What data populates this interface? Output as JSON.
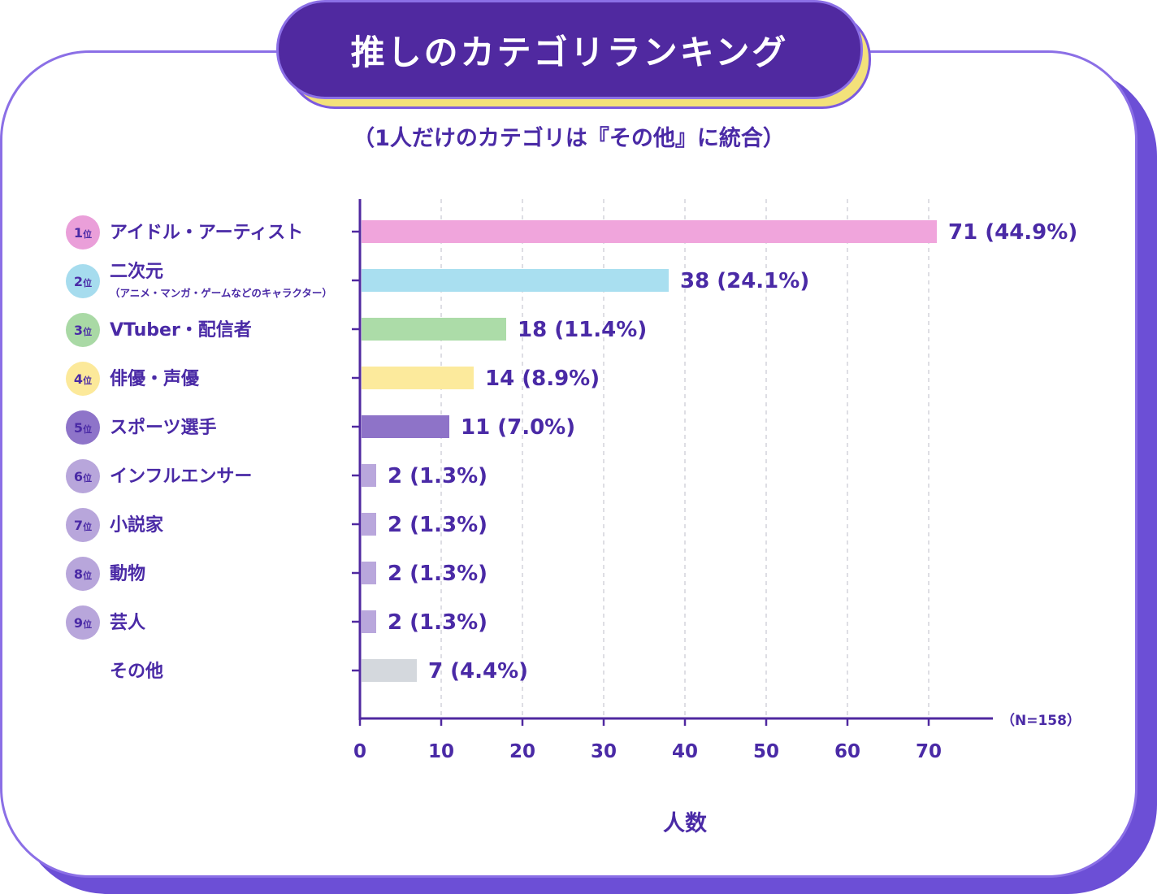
{
  "title": "推しのカテゴリランキング",
  "subtitle": "（1人だけのカテゴリは『その他』に統合）",
  "colors": {
    "primary": "#5029a0",
    "accent_yellow": "#f3e17a",
    "card_border": "#8b6fe6",
    "text": "#4a2aa6"
  },
  "chart_data": {
    "type": "bar",
    "orientation": "horizontal",
    "categories": [
      {
        "rank": "1",
        "rank_suffix": "位",
        "label": "アイドル・アーティスト",
        "sublabel": "",
        "value": 71,
        "percent_label": "(44.9%)",
        "color": "#f0a5dc",
        "badge_color": "#ea9fd9"
      },
      {
        "rank": "2",
        "rank_suffix": "位",
        "label": "二次元",
        "sublabel": "（アニメ・マンガ・ゲームなどのキャラクター）",
        "value": 38,
        "percent_label": "(24.1%)",
        "color": "#a9dff0",
        "badge_color": "#a6dcee"
      },
      {
        "rank": "3",
        "rank_suffix": "位",
        "label": "VTuber・配信者",
        "sublabel": "",
        "value": 18,
        "percent_label": "(11.4%)",
        "color": "#acdca8",
        "badge_color": "#a9d9a5"
      },
      {
        "rank": "4",
        "rank_suffix": "位",
        "label": "俳優・声優",
        "sublabel": "",
        "value": 14,
        "percent_label": "(8.9%)",
        "color": "#fcea9c",
        "badge_color": "#fce99a"
      },
      {
        "rank": "5",
        "rank_suffix": "位",
        "label": "スポーツ選手",
        "sublabel": "",
        "value": 11,
        "percent_label": "(7.0%)",
        "color": "#8e73c8",
        "badge_color": "#8e74c9"
      },
      {
        "rank": "6",
        "rank_suffix": "位",
        "label": "インフルエンサー",
        "sublabel": "",
        "value": 2,
        "percent_label": "(1.3%)",
        "color": "#b9a7dc",
        "badge_color": "#b8a6db"
      },
      {
        "rank": "7",
        "rank_suffix": "位",
        "label": "小説家",
        "sublabel": "",
        "value": 2,
        "percent_label": "(1.3%)",
        "color": "#b9a7dc",
        "badge_color": "#b8a6db"
      },
      {
        "rank": "8",
        "rank_suffix": "位",
        "label": "動物",
        "sublabel": "",
        "value": 2,
        "percent_label": "(1.3%)",
        "color": "#b9a7dc",
        "badge_color": "#b8a6db"
      },
      {
        "rank": "9",
        "rank_suffix": "位",
        "label": "芸人",
        "sublabel": "",
        "value": 2,
        "percent_label": "(1.3%)",
        "color": "#b9a7dc",
        "badge_color": "#b8a6db"
      },
      {
        "rank": "",
        "rank_suffix": "",
        "label": "その他",
        "sublabel": "",
        "value": 7,
        "percent_label": "(4.4%)",
        "color": "#d4d8dd",
        "badge_color": ""
      }
    ],
    "x_ticks": [
      0,
      10,
      20,
      30,
      40,
      50,
      60,
      70
    ],
    "xlim": [
      0,
      78
    ],
    "xlabel": "人数",
    "note": "（N=158）",
    "grid": "vertical-dashed"
  }
}
